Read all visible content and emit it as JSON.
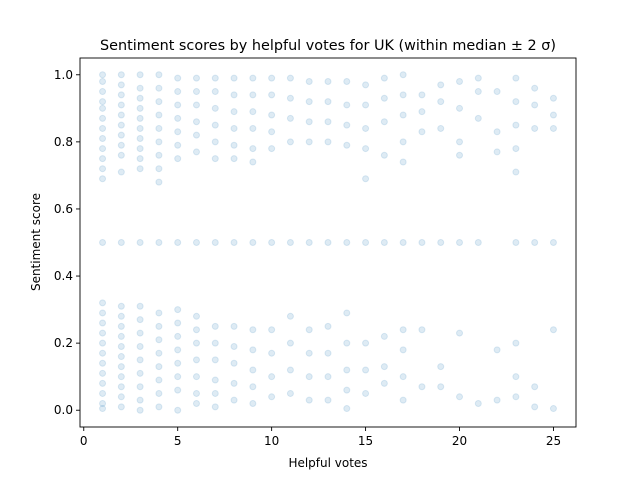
{
  "chart_data": {
    "type": "scatter",
    "title": "Sentiment scores by helpful votes for UK (within median ± 2 σ)",
    "xlabel": "Helpful votes",
    "ylabel": "Sentiment score",
    "xlim": [
      -0.2,
      26.2
    ],
    "ylim": [
      -0.05,
      1.05
    ],
    "xticks": [
      0,
      5,
      10,
      15,
      20,
      25
    ],
    "yticks": [
      0.0,
      0.2,
      0.4,
      0.6,
      0.8,
      1.0
    ],
    "xtick_labels": [
      "0",
      "5",
      "10",
      "15",
      "20",
      "25"
    ],
    "ytick_labels": [
      "0.0",
      "0.2",
      "0.4",
      "0.6",
      "0.8",
      "1.0"
    ],
    "grid": false,
    "marker_color": "#1f77b4",
    "marker_alpha": 0.15,
    "series": [
      {
        "points": [
          {
            "x": 1,
            "y": 1.0
          },
          {
            "x": 1,
            "y": 0.98
          },
          {
            "x": 1,
            "y": 0.95
          },
          {
            "x": 1,
            "y": 0.92
          },
          {
            "x": 1,
            "y": 0.9
          },
          {
            "x": 1,
            "y": 0.87
          },
          {
            "x": 1,
            "y": 0.84
          },
          {
            "x": 1,
            "y": 0.81
          },
          {
            "x": 1,
            "y": 0.78
          },
          {
            "x": 1,
            "y": 0.75
          },
          {
            "x": 1,
            "y": 0.72
          },
          {
            "x": 1,
            "y": 0.69
          },
          {
            "x": 1,
            "y": 0.5
          },
          {
            "x": 1,
            "y": 0.32
          },
          {
            "x": 1,
            "y": 0.29
          },
          {
            "x": 1,
            "y": 0.26
          },
          {
            "x": 1,
            "y": 0.23
          },
          {
            "x": 1,
            "y": 0.2
          },
          {
            "x": 1,
            "y": 0.17
          },
          {
            "x": 1,
            "y": 0.14
          },
          {
            "x": 1,
            "y": 0.11
          },
          {
            "x": 1,
            "y": 0.08
          },
          {
            "x": 1,
            "y": 0.05
          },
          {
            "x": 1,
            "y": 0.02
          },
          {
            "x": 1,
            "y": 0.005
          },
          {
            "x": 2,
            "y": 1.0
          },
          {
            "x": 2,
            "y": 0.97
          },
          {
            "x": 2,
            "y": 0.94
          },
          {
            "x": 2,
            "y": 0.91
          },
          {
            "x": 2,
            "y": 0.88
          },
          {
            "x": 2,
            "y": 0.85
          },
          {
            "x": 2,
            "y": 0.82
          },
          {
            "x": 2,
            "y": 0.79
          },
          {
            "x": 2,
            "y": 0.76
          },
          {
            "x": 2,
            "y": 0.71
          },
          {
            "x": 2,
            "y": 0.5
          },
          {
            "x": 2,
            "y": 0.31
          },
          {
            "x": 2,
            "y": 0.28
          },
          {
            "x": 2,
            "y": 0.25
          },
          {
            "x": 2,
            "y": 0.22
          },
          {
            "x": 2,
            "y": 0.19
          },
          {
            "x": 2,
            "y": 0.16
          },
          {
            "x": 2,
            "y": 0.13
          },
          {
            "x": 2,
            "y": 0.1
          },
          {
            "x": 2,
            "y": 0.07
          },
          {
            "x": 2,
            "y": 0.04
          },
          {
            "x": 2,
            "y": 0.01
          },
          {
            "x": 3,
            "y": 1.0
          },
          {
            "x": 3,
            "y": 0.96
          },
          {
            "x": 3,
            "y": 0.93
          },
          {
            "x": 3,
            "y": 0.9
          },
          {
            "x": 3,
            "y": 0.87
          },
          {
            "x": 3,
            "y": 0.84
          },
          {
            "x": 3,
            "y": 0.81
          },
          {
            "x": 3,
            "y": 0.78
          },
          {
            "x": 3,
            "y": 0.75
          },
          {
            "x": 3,
            "y": 0.72
          },
          {
            "x": 3,
            "y": 0.5
          },
          {
            "x": 3,
            "y": 0.31
          },
          {
            "x": 3,
            "y": 0.27
          },
          {
            "x": 3,
            "y": 0.23
          },
          {
            "x": 3,
            "y": 0.19
          },
          {
            "x": 3,
            "y": 0.15
          },
          {
            "x": 3,
            "y": 0.11
          },
          {
            "x": 3,
            "y": 0.07
          },
          {
            "x": 3,
            "y": 0.03
          },
          {
            "x": 3,
            "y": 0.0
          },
          {
            "x": 4,
            "y": 1.0
          },
          {
            "x": 4,
            "y": 0.96
          },
          {
            "x": 4,
            "y": 0.92
          },
          {
            "x": 4,
            "y": 0.88
          },
          {
            "x": 4,
            "y": 0.84
          },
          {
            "x": 4,
            "y": 0.8
          },
          {
            "x": 4,
            "y": 0.76
          },
          {
            "x": 4,
            "y": 0.72
          },
          {
            "x": 4,
            "y": 0.68
          },
          {
            "x": 4,
            "y": 0.5
          },
          {
            "x": 4,
            "y": 0.29
          },
          {
            "x": 4,
            "y": 0.25
          },
          {
            "x": 4,
            "y": 0.21
          },
          {
            "x": 4,
            "y": 0.17
          },
          {
            "x": 4,
            "y": 0.13
          },
          {
            "x": 4,
            "y": 0.09
          },
          {
            "x": 4,
            "y": 0.05
          },
          {
            "x": 4,
            "y": 0.01
          },
          {
            "x": 5,
            "y": 0.99
          },
          {
            "x": 5,
            "y": 0.95
          },
          {
            "x": 5,
            "y": 0.91
          },
          {
            "x": 5,
            "y": 0.87
          },
          {
            "x": 5,
            "y": 0.83
          },
          {
            "x": 5,
            "y": 0.79
          },
          {
            "x": 5,
            "y": 0.75
          },
          {
            "x": 5,
            "y": 0.5
          },
          {
            "x": 5,
            "y": 0.3
          },
          {
            "x": 5,
            "y": 0.26
          },
          {
            "x": 5,
            "y": 0.22
          },
          {
            "x": 5,
            "y": 0.18
          },
          {
            "x": 5,
            "y": 0.14
          },
          {
            "x": 5,
            "y": 0.1
          },
          {
            "x": 5,
            "y": 0.06
          },
          {
            "x": 5,
            "y": 0.0
          },
          {
            "x": 6,
            "y": 0.99
          },
          {
            "x": 6,
            "y": 0.95
          },
          {
            "x": 6,
            "y": 0.91
          },
          {
            "x": 6,
            "y": 0.86
          },
          {
            "x": 6,
            "y": 0.82
          },
          {
            "x": 6,
            "y": 0.77
          },
          {
            "x": 6,
            "y": 0.5
          },
          {
            "x": 6,
            "y": 0.28
          },
          {
            "x": 6,
            "y": 0.24
          },
          {
            "x": 6,
            "y": 0.2
          },
          {
            "x": 6,
            "y": 0.15
          },
          {
            "x": 6,
            "y": 0.1
          },
          {
            "x": 6,
            "y": 0.05
          },
          {
            "x": 6,
            "y": 0.02
          },
          {
            "x": 7,
            "y": 0.99
          },
          {
            "x": 7,
            "y": 0.95
          },
          {
            "x": 7,
            "y": 0.9
          },
          {
            "x": 7,
            "y": 0.85
          },
          {
            "x": 7,
            "y": 0.8
          },
          {
            "x": 7,
            "y": 0.75
          },
          {
            "x": 7,
            "y": 0.5
          },
          {
            "x": 7,
            "y": 0.25
          },
          {
            "x": 7,
            "y": 0.2
          },
          {
            "x": 7,
            "y": 0.15
          },
          {
            "x": 7,
            "y": 0.09
          },
          {
            "x": 7,
            "y": 0.05
          },
          {
            "x": 7,
            "y": 0.01
          },
          {
            "x": 8,
            "y": 0.99
          },
          {
            "x": 8,
            "y": 0.94
          },
          {
            "x": 8,
            "y": 0.89
          },
          {
            "x": 8,
            "y": 0.84
          },
          {
            "x": 8,
            "y": 0.79
          },
          {
            "x": 8,
            "y": 0.75
          },
          {
            "x": 8,
            "y": 0.5
          },
          {
            "x": 8,
            "y": 0.25
          },
          {
            "x": 8,
            "y": 0.19
          },
          {
            "x": 8,
            "y": 0.14
          },
          {
            "x": 8,
            "y": 0.08
          },
          {
            "x": 8,
            "y": 0.03
          },
          {
            "x": 9,
            "y": 0.99
          },
          {
            "x": 9,
            "y": 0.94
          },
          {
            "x": 9,
            "y": 0.89
          },
          {
            "x": 9,
            "y": 0.84
          },
          {
            "x": 9,
            "y": 0.78
          },
          {
            "x": 9,
            "y": 0.74
          },
          {
            "x": 9,
            "y": 0.5
          },
          {
            "x": 9,
            "y": 0.24
          },
          {
            "x": 9,
            "y": 0.18
          },
          {
            "x": 9,
            "y": 0.12
          },
          {
            "x": 9,
            "y": 0.07
          },
          {
            "x": 9,
            "y": 0.02
          },
          {
            "x": 10,
            "y": 0.99
          },
          {
            "x": 10,
            "y": 0.94
          },
          {
            "x": 10,
            "y": 0.88
          },
          {
            "x": 10,
            "y": 0.83
          },
          {
            "x": 10,
            "y": 0.78
          },
          {
            "x": 10,
            "y": 0.5
          },
          {
            "x": 10,
            "y": 0.24
          },
          {
            "x": 10,
            "y": 0.17
          },
          {
            "x": 10,
            "y": 0.1
          },
          {
            "x": 10,
            "y": 0.04
          },
          {
            "x": 11,
            "y": 0.99
          },
          {
            "x": 11,
            "y": 0.93
          },
          {
            "x": 11,
            "y": 0.87
          },
          {
            "x": 11,
            "y": 0.8
          },
          {
            "x": 11,
            "y": 0.5
          },
          {
            "x": 11,
            "y": 0.28
          },
          {
            "x": 11,
            "y": 0.2
          },
          {
            "x": 11,
            "y": 0.12
          },
          {
            "x": 11,
            "y": 0.05
          },
          {
            "x": 12,
            "y": 0.98
          },
          {
            "x": 12,
            "y": 0.92
          },
          {
            "x": 12,
            "y": 0.86
          },
          {
            "x": 12,
            "y": 0.8
          },
          {
            "x": 12,
            "y": 0.5
          },
          {
            "x": 12,
            "y": 0.24
          },
          {
            "x": 12,
            "y": 0.17
          },
          {
            "x": 12,
            "y": 0.1
          },
          {
            "x": 12,
            "y": 0.03
          },
          {
            "x": 13,
            "y": 0.98
          },
          {
            "x": 13,
            "y": 0.92
          },
          {
            "x": 13,
            "y": 0.86
          },
          {
            "x": 13,
            "y": 0.8
          },
          {
            "x": 13,
            "y": 0.5
          },
          {
            "x": 13,
            "y": 0.25
          },
          {
            "x": 13,
            "y": 0.17
          },
          {
            "x": 13,
            "y": 0.1
          },
          {
            "x": 13,
            "y": 0.03
          },
          {
            "x": 14,
            "y": 0.98
          },
          {
            "x": 14,
            "y": 0.91
          },
          {
            "x": 14,
            "y": 0.85
          },
          {
            "x": 14,
            "y": 0.79
          },
          {
            "x": 14,
            "y": 0.5
          },
          {
            "x": 14,
            "y": 0.29
          },
          {
            "x": 14,
            "y": 0.2
          },
          {
            "x": 14,
            "y": 0.12
          },
          {
            "x": 14,
            "y": 0.06
          },
          {
            "x": 14,
            "y": 0.005
          },
          {
            "x": 15,
            "y": 0.97
          },
          {
            "x": 15,
            "y": 0.91
          },
          {
            "x": 15,
            "y": 0.84
          },
          {
            "x": 15,
            "y": 0.78
          },
          {
            "x": 15,
            "y": 0.69
          },
          {
            "x": 15,
            "y": 0.5
          },
          {
            "x": 15,
            "y": 0.2
          },
          {
            "x": 15,
            "y": 0.12
          },
          {
            "x": 15,
            "y": 0.05
          },
          {
            "x": 16,
            "y": 0.99
          },
          {
            "x": 16,
            "y": 0.93
          },
          {
            "x": 16,
            "y": 0.86
          },
          {
            "x": 16,
            "y": 0.76
          },
          {
            "x": 16,
            "y": 0.5
          },
          {
            "x": 16,
            "y": 0.22
          },
          {
            "x": 16,
            "y": 0.13
          },
          {
            "x": 16,
            "y": 0.08
          },
          {
            "x": 17,
            "y": 1.0
          },
          {
            "x": 17,
            "y": 0.94
          },
          {
            "x": 17,
            "y": 0.88
          },
          {
            "x": 17,
            "y": 0.8
          },
          {
            "x": 17,
            "y": 0.74
          },
          {
            "x": 17,
            "y": 0.5
          },
          {
            "x": 17,
            "y": 0.24
          },
          {
            "x": 17,
            "y": 0.18
          },
          {
            "x": 17,
            "y": 0.1
          },
          {
            "x": 17,
            "y": 0.03
          },
          {
            "x": 18,
            "y": 0.94
          },
          {
            "x": 18,
            "y": 0.89
          },
          {
            "x": 18,
            "y": 0.83
          },
          {
            "x": 18,
            "y": 0.5
          },
          {
            "x": 18,
            "y": 0.24
          },
          {
            "x": 18,
            "y": 0.07
          },
          {
            "x": 19,
            "y": 0.97
          },
          {
            "x": 19,
            "y": 0.92
          },
          {
            "x": 19,
            "y": 0.84
          },
          {
            "x": 19,
            "y": 0.5
          },
          {
            "x": 19,
            "y": 0.13
          },
          {
            "x": 19,
            "y": 0.07
          },
          {
            "x": 20,
            "y": 0.98
          },
          {
            "x": 20,
            "y": 0.9
          },
          {
            "x": 20,
            "y": 0.8
          },
          {
            "x": 20,
            "y": 0.76
          },
          {
            "x": 20,
            "y": 0.5
          },
          {
            "x": 20,
            "y": 0.23
          },
          {
            "x": 20,
            "y": 0.04
          },
          {
            "x": 21,
            "y": 0.99
          },
          {
            "x": 21,
            "y": 0.95
          },
          {
            "x": 21,
            "y": 0.87
          },
          {
            "x": 21,
            "y": 0.5
          },
          {
            "x": 21,
            "y": 0.02
          },
          {
            "x": 22,
            "y": 0.95
          },
          {
            "x": 22,
            "y": 0.83
          },
          {
            "x": 22,
            "y": 0.77
          },
          {
            "x": 22,
            "y": 0.18
          },
          {
            "x": 22,
            "y": 0.03
          },
          {
            "x": 23,
            "y": 0.99
          },
          {
            "x": 23,
            "y": 0.92
          },
          {
            "x": 23,
            "y": 0.85
          },
          {
            "x": 23,
            "y": 0.78
          },
          {
            "x": 23,
            "y": 0.71
          },
          {
            "x": 23,
            "y": 0.5
          },
          {
            "x": 23,
            "y": 0.2
          },
          {
            "x": 23,
            "y": 0.1
          },
          {
            "x": 23,
            "y": 0.04
          },
          {
            "x": 24,
            "y": 0.96
          },
          {
            "x": 24,
            "y": 0.91
          },
          {
            "x": 24,
            "y": 0.84
          },
          {
            "x": 24,
            "y": 0.5
          },
          {
            "x": 24,
            "y": 0.07
          },
          {
            "x": 24,
            "y": 0.01
          },
          {
            "x": 25,
            "y": 0.93
          },
          {
            "x": 25,
            "y": 0.88
          },
          {
            "x": 25,
            "y": 0.84
          },
          {
            "x": 25,
            "y": 0.5
          },
          {
            "x": 25,
            "y": 0.24
          },
          {
            "x": 25,
            "y": 0.005
          }
        ]
      }
    ]
  }
}
